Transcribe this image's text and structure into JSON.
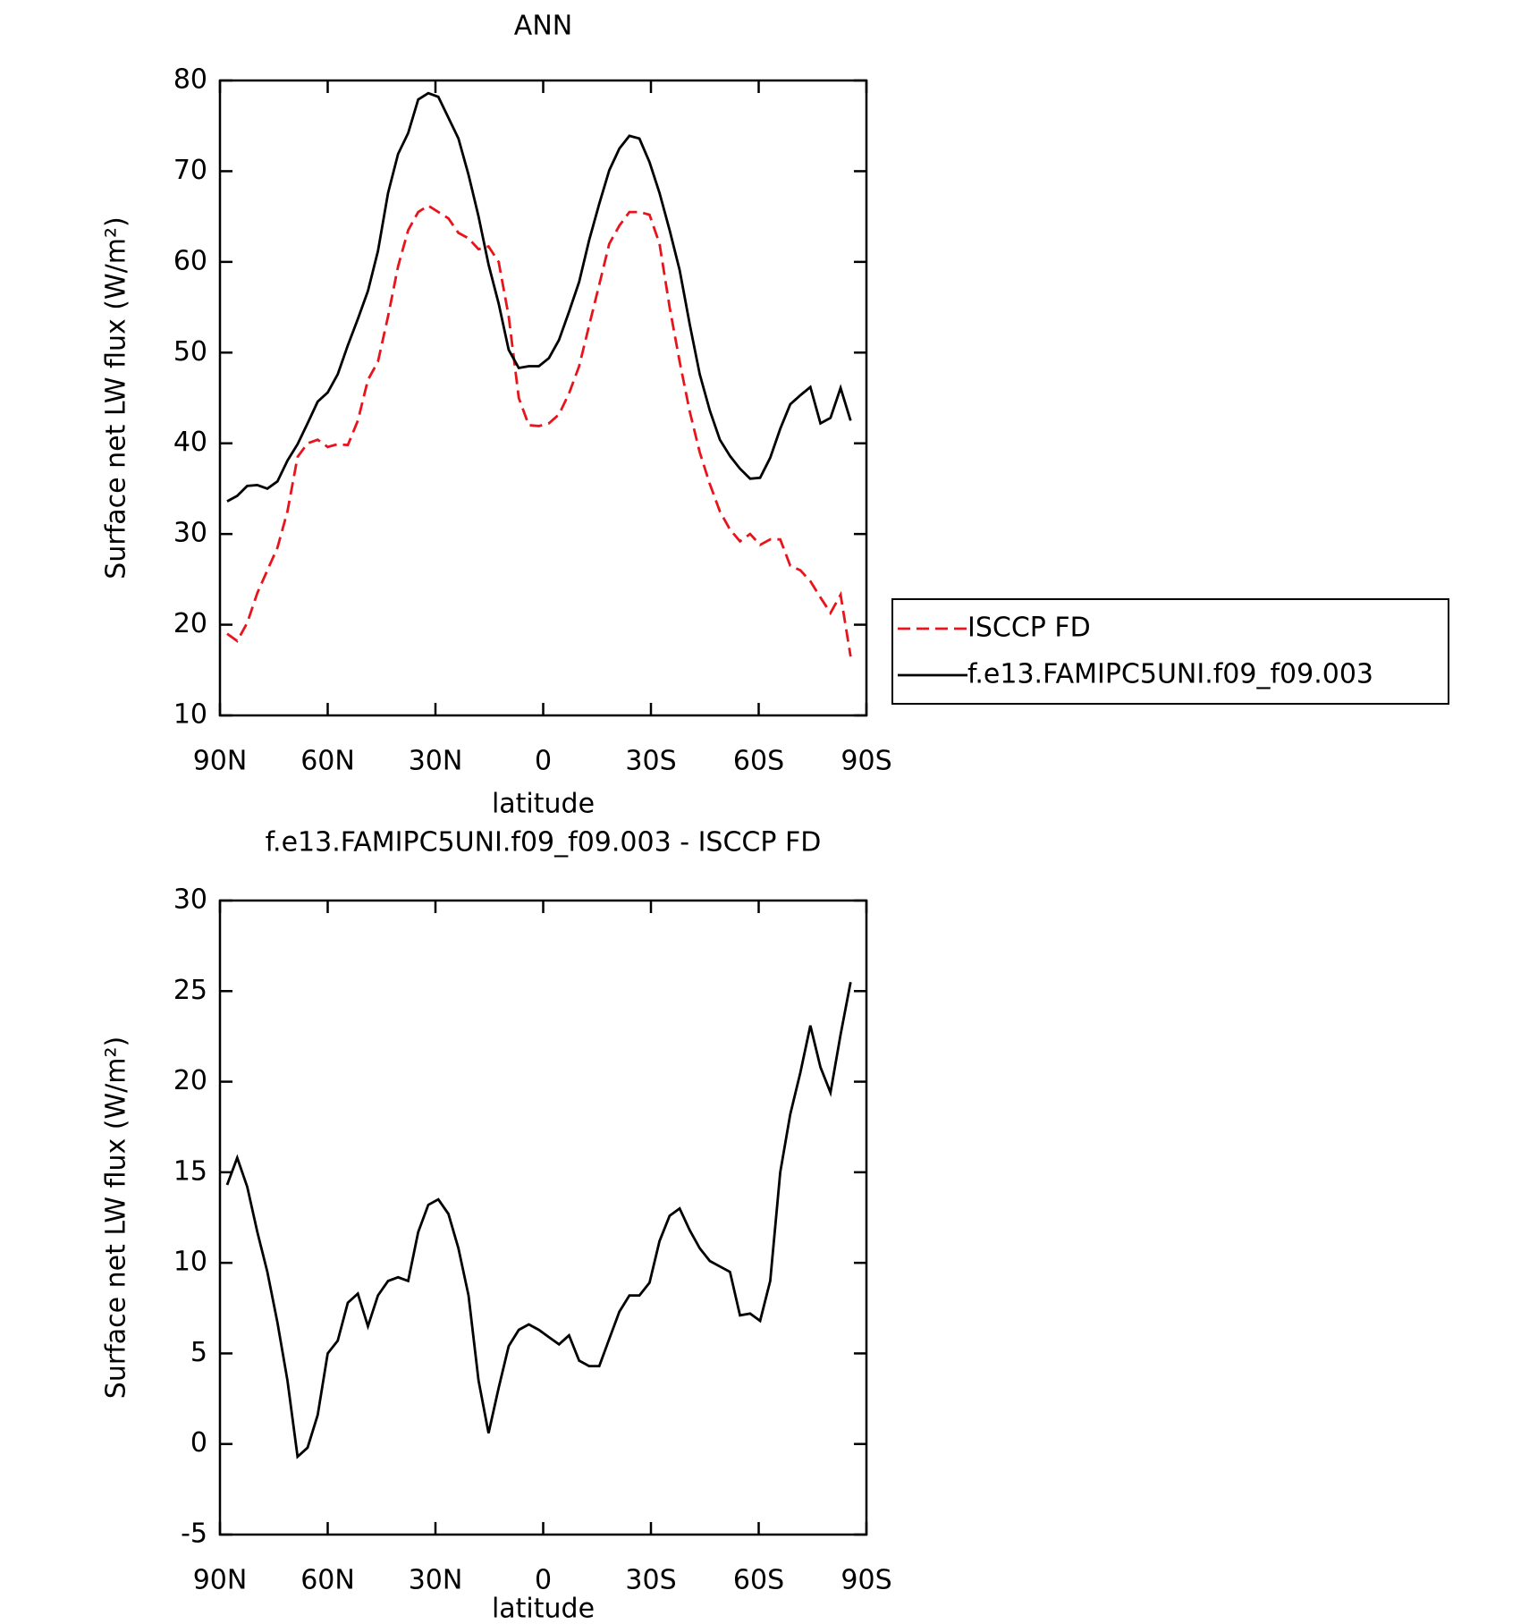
{
  "chart_data": [
    {
      "type": "line",
      "title": "ANN",
      "xlabel": "latitude",
      "ylabel": "Surface net LW flux (W/m²)",
      "x": [
        88,
        85.2,
        82.4,
        79.6,
        76.8,
        74,
        71.2,
        68.4,
        65.6,
        62.8,
        60,
        57.2,
        54.4,
        51.6,
        48.8,
        46,
        43.2,
        40.4,
        37.6,
        34.8,
        32,
        29.2,
        26.4,
        23.6,
        20.8,
        18,
        15.2,
        12.4,
        9.6,
        6.8,
        4,
        1.2,
        -1.6,
        -4.4,
        -7.2,
        -10,
        -12.8,
        -15.6,
        -18.4,
        -21.2,
        -24,
        -26.8,
        -29.6,
        -32.4,
        -35.2,
        -38,
        -40.8,
        -43.6,
        -46.4,
        -49.2,
        -52,
        -54.8,
        -57.6,
        -60.4,
        -63.2,
        -66,
        -68.8,
        -71.6,
        -74.4,
        -77.2,
        -80,
        -82.8,
        -85.6
      ],
      "series": [
        {
          "name": "ISCCP FD",
          "color": "#e8141c",
          "dashed": true,
          "values": [
            19.0,
            18.2,
            20.2,
            23.5,
            26.0,
            28.5,
            32.5,
            38.5,
            40.0,
            40.4,
            39.6,
            39.9,
            39.8,
            42.5,
            47.0,
            49.0,
            54.0,
            59.5,
            63.5,
            65.5,
            66.2,
            65.5,
            64.8,
            63.2,
            62.6,
            61.4,
            61.7,
            60.0,
            54.0,
            45.0,
            42.0,
            41.9,
            42.2,
            43.2,
            45.5,
            48.5,
            53.0,
            57.5,
            62.0,
            64.0,
            65.5,
            65.5,
            65.2,
            62.0,
            55.0,
            49.0,
            43.5,
            39.0,
            35.5,
            32.5,
            30.5,
            29.2,
            30.0,
            28.8,
            29.4,
            29.4,
            26.5,
            26.0,
            24.8,
            23.0,
            21.3,
            23.3,
            16.5
          ]
        },
        {
          "name": "f.e13.FAMIPC5UNI.f09_f09.003",
          "color": "#000000",
          "dashed": false,
          "values": [
            33.6,
            34.2,
            35.3,
            35.4,
            35.0,
            35.8,
            38.1,
            39.9,
            42.2,
            44.6,
            45.6,
            47.6,
            50.8,
            53.7,
            56.8,
            61.2,
            67.6,
            71.9,
            74.2,
            77.9,
            78.6,
            78.2,
            75.9,
            73.6,
            69.6,
            65.0,
            59.7,
            55.4,
            50.3,
            48.3,
            48.5,
            48.5,
            49.4,
            51.4,
            54.5,
            57.8,
            62.4,
            66.4,
            70.1,
            72.5,
            73.9,
            73.6,
            71.0,
            67.6,
            63.5,
            59.1,
            53.1,
            47.6,
            43.6,
            40.4,
            38.6,
            37.2,
            36.1,
            36.2,
            38.4,
            41.6,
            44.3,
            45.3,
            46.2,
            42.2,
            42.8,
            46.1,
            42.5
          ]
        }
      ],
      "xlim": [
        90,
        -90
      ],
      "xticks": [
        {
          "value": 90,
          "label": "90N"
        },
        {
          "value": 60,
          "label": "60N"
        },
        {
          "value": 30,
          "label": "30N"
        },
        0,
        {
          "value": -30,
          "label": "30S"
        },
        {
          "value": -60,
          "label": "60S"
        },
        {
          "value": -90,
          "label": "90S"
        }
      ],
      "ylim": [
        10,
        80
      ],
      "yticks": [
        10,
        20,
        30,
        40,
        50,
        60,
        70,
        80
      ],
      "legend": "right"
    },
    {
      "type": "line",
      "title": "f.e13.FAMIPC5UNI.f09_f09.003 - ISCCP FD",
      "xlabel": "latitude",
      "ylabel": "Surface net LW flux (W/m²)",
      "x": [
        88,
        85.2,
        82.4,
        79.6,
        76.8,
        74,
        71.2,
        68.4,
        65.6,
        62.8,
        60,
        57.2,
        54.4,
        51.6,
        48.8,
        46,
        43.2,
        40.4,
        37.6,
        34.8,
        32,
        29.2,
        26.4,
        23.6,
        20.8,
        18,
        15.2,
        12.4,
        9.6,
        6.8,
        4,
        1.2,
        -1.6,
        -4.4,
        -7.2,
        -10,
        -12.8,
        -15.6,
        -18.4,
        -21.2,
        -24,
        -26.8,
        -29.6,
        -32.4,
        -35.2,
        -38,
        -40.8,
        -43.6,
        -46.4,
        -49.2,
        -52,
        -54.8,
        -57.6,
        -60.4,
        -63.2,
        -66,
        -68.8,
        -71.6,
        -74.4,
        -77.2,
        -80,
        -82.8,
        -85.6
      ],
      "series": [
        {
          "color": "#000000",
          "dashed": false,
          "values": [
            14.3,
            15.8,
            14.2,
            11.7,
            9.5,
            6.7,
            3.5,
            -0.7,
            -0.2,
            1.6,
            5.0,
            5.7,
            7.8,
            8.3,
            6.5,
            8.2,
            9.0,
            9.2,
            9.0,
            11.7,
            13.2,
            13.5,
            12.7,
            10.8,
            8.2,
            3.5,
            0.6,
            3.1,
            5.4,
            6.3,
            6.6,
            6.3,
            5.9,
            5.5,
            6.0,
            4.6,
            4.3,
            4.3,
            5.8,
            7.3,
            8.2,
            8.2,
            8.9,
            11.2,
            12.6,
            13.0,
            11.8,
            10.8,
            10.1,
            9.8,
            9.5,
            7.1,
            7.2,
            6.8,
            9.0,
            15.0,
            18.2,
            20.5,
            23.1,
            20.8,
            19.4,
            22.6,
            25.5
          ]
        }
      ],
      "xlim": [
        90,
        -90
      ],
      "xticks": [
        {
          "value": 90,
          "label": "90N"
        },
        {
          "value": 60,
          "label": "60N"
        },
        {
          "value": 30,
          "label": "30N"
        },
        0,
        {
          "value": -30,
          "label": "30S"
        },
        {
          "value": -60,
          "label": "60S"
        },
        {
          "value": -90,
          "label": "90S"
        }
      ],
      "ylim": [
        -5,
        30
      ],
      "yticks": [
        -5,
        0,
        5,
        10,
        15,
        20,
        25,
        30
      ]
    }
  ]
}
